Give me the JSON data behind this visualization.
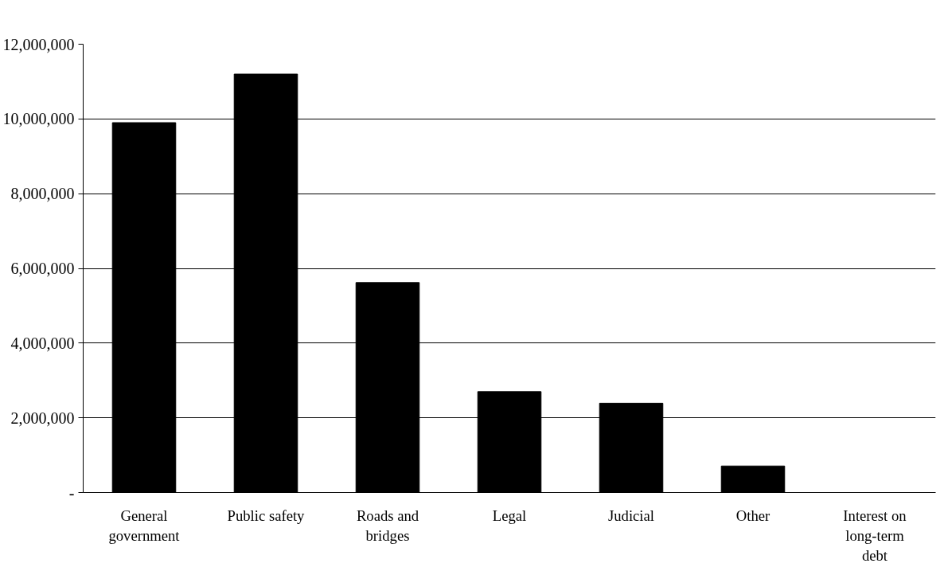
{
  "chart_data": {
    "type": "bar",
    "categories": [
      "General government",
      "Public safety",
      "Roads and bridges",
      "Legal",
      "Judicial",
      "Other",
      "Interest on long-term debt"
    ],
    "values": [
      9900000,
      11200000,
      5620000,
      2700000,
      2390000,
      710000,
      0
    ],
    "color": "#000000",
    "ylim": [
      0,
      12000000
    ],
    "yticks": [
      {
        "value": 0,
        "label": "-"
      },
      {
        "value": 2000000,
        "label": "2,000,000"
      },
      {
        "value": 4000000,
        "label": "4,000,000"
      },
      {
        "value": 6000000,
        "label": "6,000,000"
      },
      {
        "value": 8000000,
        "label": "8,000,000"
      },
      {
        "value": 10000000,
        "label": "10,000,000"
      },
      {
        "value": 12000000,
        "label": "12,000,000"
      }
    ],
    "grid": "y"
  }
}
